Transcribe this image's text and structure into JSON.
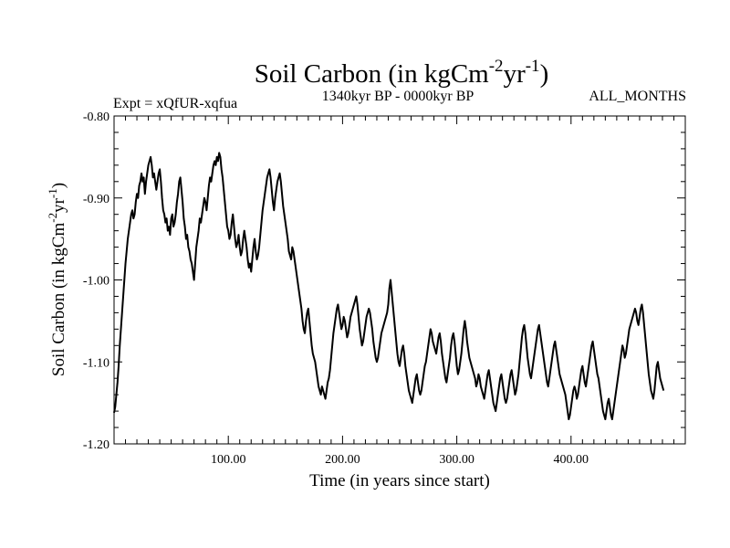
{
  "chart_data": {
    "type": "line",
    "title": {
      "main": "Soil Carbon (in kgCm",
      "sup1": "-2",
      "mid": "yr",
      "sup2": "-1",
      "end": ")"
    },
    "subtitle_left": "Expt = xQfUR-xqfua",
    "subtitle_center": "1340kyr BP - 0000kyr BP",
    "subtitle_right": "ALL_MONTHS",
    "xlabel": "Time (in years since start)",
    "ylabel": {
      "main": "Soil Carbon (in kgCm",
      "sup1": "-2",
      "mid": "yr",
      "sup2": "-1",
      "end": ")"
    },
    "xlim": [
      0,
      500
    ],
    "ylim": [
      -1.2,
      -0.8
    ],
    "x_major_ticks": [
      100,
      200,
      300,
      400
    ],
    "x_tick_labels": [
      "100.00",
      "200.00",
      "300.00",
      "400.00"
    ],
    "y_major_ticks": [
      -1.2,
      -1.1,
      -1.0,
      -0.9,
      -0.8
    ],
    "y_tick_labels": [
      "-1.20",
      "-1.10",
      "-1.00",
      "-0.90",
      "-0.80"
    ],
    "grid": false,
    "series": [
      {
        "name": "Soil Carbon",
        "line_color": "#000000",
        "x_start": 0,
        "x_step": 1,
        "values": [
          -1.162,
          -1.155,
          -1.14,
          -1.125,
          -1.105,
          -1.08,
          -1.06,
          -1.04,
          -1.02,
          -1.0,
          -0.98,
          -0.965,
          -0.95,
          -0.94,
          -0.93,
          -0.92,
          -0.915,
          -0.925,
          -0.92,
          -0.905,
          -0.895,
          -0.9,
          -0.885,
          -0.88,
          -0.87,
          -0.88,
          -0.875,
          -0.895,
          -0.88,
          -0.87,
          -0.86,
          -0.855,
          -0.85,
          -0.86,
          -0.875,
          -0.87,
          -0.88,
          -0.89,
          -0.88,
          -0.87,
          -0.865,
          -0.88,
          -0.9,
          -0.915,
          -0.92,
          -0.93,
          -0.925,
          -0.94,
          -0.935,
          -0.945,
          -0.925,
          -0.92,
          -0.935,
          -0.93,
          -0.92,
          -0.905,
          -0.895,
          -0.88,
          -0.875,
          -0.89,
          -0.905,
          -0.925,
          -0.935,
          -0.95,
          -0.945,
          -0.96,
          -0.965,
          -0.975,
          -0.98,
          -0.99,
          -1.0,
          -0.98,
          -0.96,
          -0.95,
          -0.94,
          -0.925,
          -0.93,
          -0.92,
          -0.91,
          -0.9,
          -0.905,
          -0.915,
          -0.9,
          -0.885,
          -0.875,
          -0.88,
          -0.87,
          -0.86,
          -0.855,
          -0.86,
          -0.85,
          -0.855,
          -0.845,
          -0.85,
          -0.865,
          -0.875,
          -0.89,
          -0.905,
          -0.92,
          -0.935,
          -0.94,
          -0.95,
          -0.945,
          -0.93,
          -0.92,
          -0.935,
          -0.95,
          -0.96,
          -0.955,
          -0.945,
          -0.96,
          -0.97,
          -0.965,
          -0.95,
          -0.94,
          -0.95,
          -0.96,
          -0.975,
          -0.985,
          -0.98,
          -0.99,
          -0.975,
          -0.96,
          -0.95,
          -0.965,
          -0.975,
          -0.97,
          -0.96,
          -0.945,
          -0.93,
          -0.915,
          -0.905,
          -0.895,
          -0.885,
          -0.875,
          -0.87,
          -0.865,
          -0.875,
          -0.89,
          -0.905,
          -0.915,
          -0.9,
          -0.89,
          -0.88,
          -0.875,
          -0.87,
          -0.88,
          -0.895,
          -0.91,
          -0.92,
          -0.93,
          -0.94,
          -0.95,
          -0.965,
          -0.97,
          -0.975,
          -0.96,
          -0.965,
          -0.975,
          -0.985,
          -0.995,
          -1.005,
          -1.015,
          -1.025,
          -1.035,
          -1.05,
          -1.06,
          -1.065,
          -1.05,
          -1.04,
          -1.035,
          -1.05,
          -1.065,
          -1.08,
          -1.09,
          -1.095,
          -1.1,
          -1.11,
          -1.12,
          -1.13,
          -1.135,
          -1.14,
          -1.13,
          -1.135,
          -1.14,
          -1.145,
          -1.135,
          -1.125,
          -1.12,
          -1.11,
          -1.095,
          -1.08,
          -1.065,
          -1.055,
          -1.045,
          -1.035,
          -1.03,
          -1.04,
          -1.05,
          -1.06,
          -1.055,
          -1.045,
          -1.05,
          -1.06,
          -1.07,
          -1.065,
          -1.055,
          -1.045,
          -1.04,
          -1.035,
          -1.03,
          -1.025,
          -1.02,
          -1.03,
          -1.045,
          -1.06,
          -1.07,
          -1.08,
          -1.075,
          -1.065,
          -1.055,
          -1.045,
          -1.04,
          -1.035,
          -1.04,
          -1.05,
          -1.06,
          -1.075,
          -1.085,
          -1.095,
          -1.1,
          -1.095,
          -1.085,
          -1.075,
          -1.065,
          -1.06,
          -1.055,
          -1.05,
          -1.045,
          -1.04,
          -1.03,
          -1.01,
          -1.0,
          -1.015,
          -1.03,
          -1.045,
          -1.06,
          -1.075,
          -1.09,
          -1.1,
          -1.105,
          -1.095,
          -1.085,
          -1.08,
          -1.09,
          -1.105,
          -1.115,
          -1.125,
          -1.135,
          -1.14,
          -1.145,
          -1.15,
          -1.14,
          -1.13,
          -1.12,
          -1.115,
          -1.125,
          -1.135,
          -1.14,
          -1.135,
          -1.125,
          -1.115,
          -1.105,
          -1.1,
          -1.09,
          -1.08,
          -1.07,
          -1.06,
          -1.065,
          -1.075,
          -1.08,
          -1.085,
          -1.09,
          -1.08,
          -1.07,
          -1.065,
          -1.075,
          -1.09,
          -1.1,
          -1.11,
          -1.12,
          -1.125,
          -1.115,
          -1.105,
          -1.095,
          -1.08,
          -1.07,
          -1.065,
          -1.075,
          -1.09,
          -1.105,
          -1.115,
          -1.11,
          -1.1,
          -1.09,
          -1.075,
          -1.06,
          -1.05,
          -1.06,
          -1.075,
          -1.085,
          -1.095,
          -1.1,
          -1.105,
          -1.11,
          -1.115,
          -1.12,
          -1.13,
          -1.125,
          -1.115,
          -1.12,
          -1.13,
          -1.135,
          -1.14,
          -1.145,
          -1.135,
          -1.125,
          -1.115,
          -1.11,
          -1.12,
          -1.13,
          -1.14,
          -1.15,
          -1.155,
          -1.16,
          -1.15,
          -1.14,
          -1.13,
          -1.12,
          -1.115,
          -1.125,
          -1.135,
          -1.145,
          -1.15,
          -1.145,
          -1.135,
          -1.125,
          -1.115,
          -1.11,
          -1.12,
          -1.13,
          -1.14,
          -1.135,
          -1.125,
          -1.115,
          -1.1,
          -1.085,
          -1.07,
          -1.06,
          -1.055,
          -1.065,
          -1.08,
          -1.095,
          -1.105,
          -1.115,
          -1.12,
          -1.11,
          -1.1,
          -1.09,
          -1.08,
          -1.07,
          -1.06,
          -1.055,
          -1.065,
          -1.075,
          -1.085,
          -1.095,
          -1.105,
          -1.115,
          -1.125,
          -1.13,
          -1.12,
          -1.11,
          -1.1,
          -1.09,
          -1.08,
          -1.075,
          -1.085,
          -1.095,
          -1.105,
          -1.115,
          -1.12,
          -1.125,
          -1.13,
          -1.135,
          -1.14,
          -1.15,
          -1.16,
          -1.17,
          -1.165,
          -1.155,
          -1.145,
          -1.135,
          -1.13,
          -1.135,
          -1.145,
          -1.14,
          -1.13,
          -1.12,
          -1.11,
          -1.105,
          -1.115,
          -1.125,
          -1.13,
          -1.12,
          -1.11,
          -1.1,
          -1.09,
          -1.08,
          -1.075,
          -1.085,
          -1.095,
          -1.105,
          -1.115,
          -1.12,
          -1.13,
          -1.14,
          -1.15,
          -1.16,
          -1.165,
          -1.17,
          -1.16,
          -1.15,
          -1.145,
          -1.155,
          -1.165,
          -1.17,
          -1.16,
          -1.15,
          -1.14,
          -1.13,
          -1.12,
          -1.11,
          -1.1,
          -1.09,
          -1.08,
          -1.085,
          -1.095,
          -1.09,
          -1.08,
          -1.07,
          -1.06,
          -1.055,
          -1.05,
          -1.045,
          -1.04,
          -1.035,
          -1.04,
          -1.05,
          -1.055,
          -1.045,
          -1.035,
          -1.03,
          -1.04,
          -1.055,
          -1.07,
          -1.085,
          -1.1,
          -1.115,
          -1.125,
          -1.135,
          -1.14,
          -1.145,
          -1.135,
          -1.12,
          -1.105,
          -1.1,
          -1.11,
          -1.12,
          -1.125,
          -1.13,
          -1.135
        ]
      }
    ]
  }
}
